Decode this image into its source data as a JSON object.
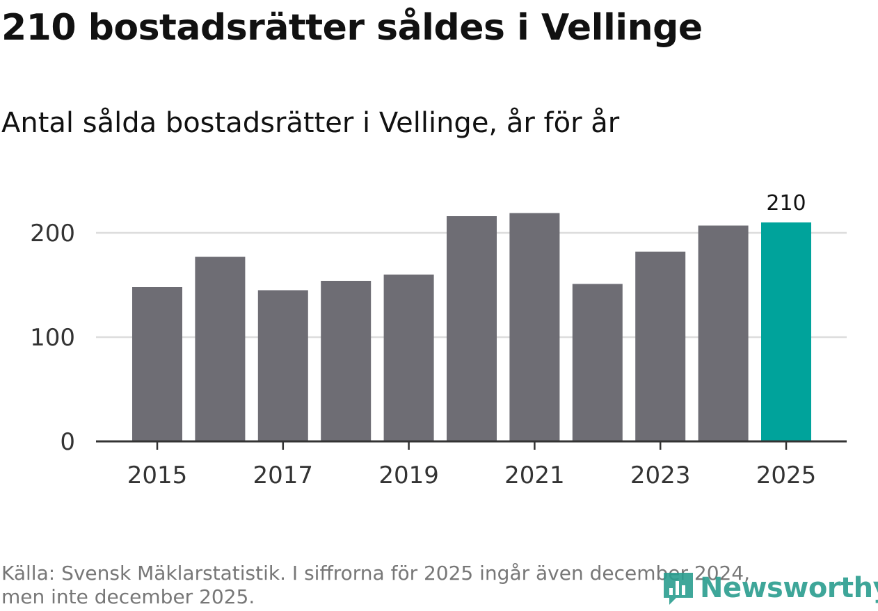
{
  "header": {
    "title": "210 bostadsrätter såldes i Vellinge",
    "subtitle": "Antal sålda bostadsrätter i Vellinge, år för år"
  },
  "footer": {
    "source_line1": "Källa: Svensk Mäklarstatistik. I siffrorna för 2025 ingår även december 2024,",
    "source_line2": "men inte december 2025.",
    "logo_text": "Newsworthy"
  },
  "colors": {
    "bar": "#6e6d74",
    "highlight": "#00a39b",
    "grid": "#dddddd",
    "axis": "#333333",
    "logo": "#2a9d8f"
  },
  "chart_data": {
    "type": "bar",
    "title": "Antal sålda bostadsrätter i Vellinge, år för år",
    "xlabel": "",
    "ylabel": "",
    "categories": [
      "2015",
      "2016",
      "2017",
      "2018",
      "2019",
      "2020",
      "2021",
      "2022",
      "2023",
      "2024",
      "2025"
    ],
    "values": [
      148,
      177,
      145,
      154,
      160,
      216,
      219,
      151,
      182,
      207,
      210
    ],
    "highlight_index": 10,
    "highlight_label": "210",
    "x_tick_labels": [
      "2015",
      "2017",
      "2019",
      "2021",
      "2023",
      "2025"
    ],
    "y_ticks": [
      0,
      100,
      200
    ],
    "ylim": [
      0,
      230
    ],
    "grid": true
  }
}
